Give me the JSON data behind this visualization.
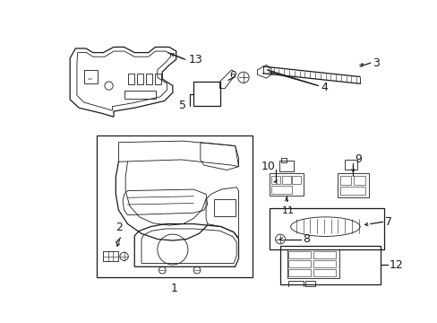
{
  "bg_color": "#ffffff",
  "line_color": "#1a1a1a",
  "fig_width": 4.89,
  "fig_height": 3.6,
  "dpi": 100,
  "part13_label": "13",
  "part3_label": "3",
  "part4_label": "4",
  "part5_label": "5",
  "part6_label": "6",
  "part1_label": "1",
  "part2_label": "2",
  "part10_label": "10",
  "part9_label": "9",
  "part11_label": "11",
  "part7_label": "7",
  "part8_label": "8",
  "part12_label": "12"
}
